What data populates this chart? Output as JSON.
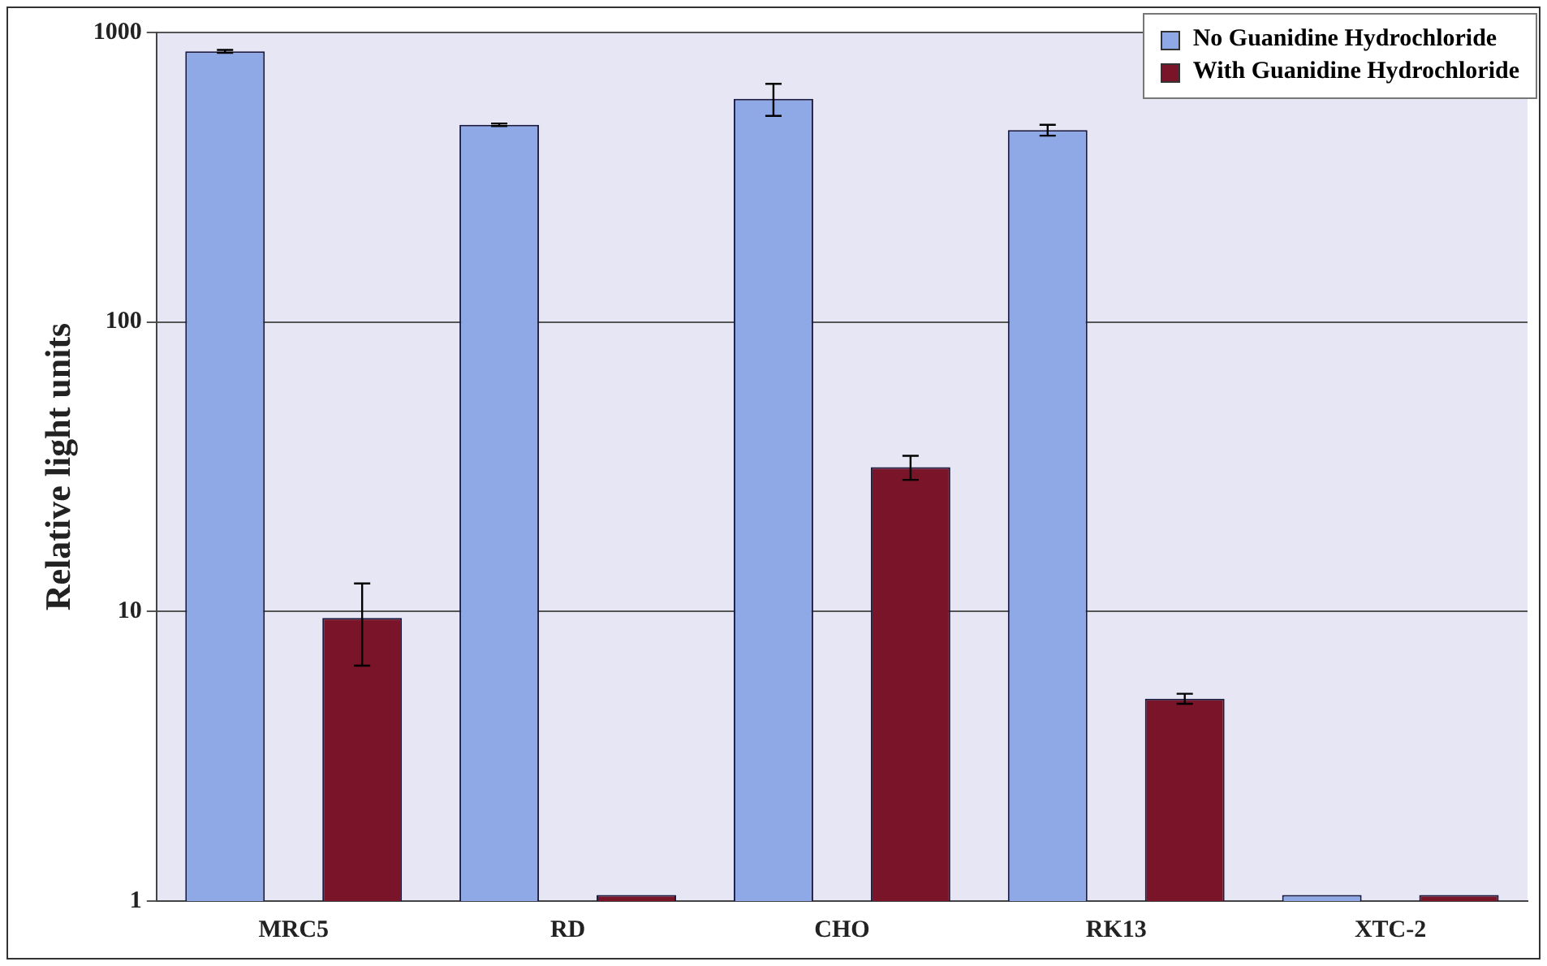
{
  "chart_data": {
    "type": "bar",
    "ylabel": "Relative light units",
    "categories": [
      "MRC5",
      "RD",
      "CHO",
      "RK13",
      "XTC-2"
    ],
    "series": [
      {
        "name": "No Guanidine Hydrochloride",
        "color": "#8fa8e6",
        "values": [
          860,
          480,
          590,
          460,
          1.05
        ],
        "errors": [
          10,
          5,
          75,
          20,
          null
        ]
      },
      {
        "name": "With Guanidine Hydrochloride",
        "color": "#7a1428",
        "values": [
          9.5,
          1.05,
          31.5,
          5.0,
          1.05
        ],
        "errors": [
          3,
          null,
          3,
          0.2,
          null
        ]
      }
    ],
    "log": true,
    "ylim": [
      1,
      1000
    ],
    "yticks": [
      1,
      10,
      100,
      1000
    ],
    "grid": "y",
    "legend": "top right"
  }
}
